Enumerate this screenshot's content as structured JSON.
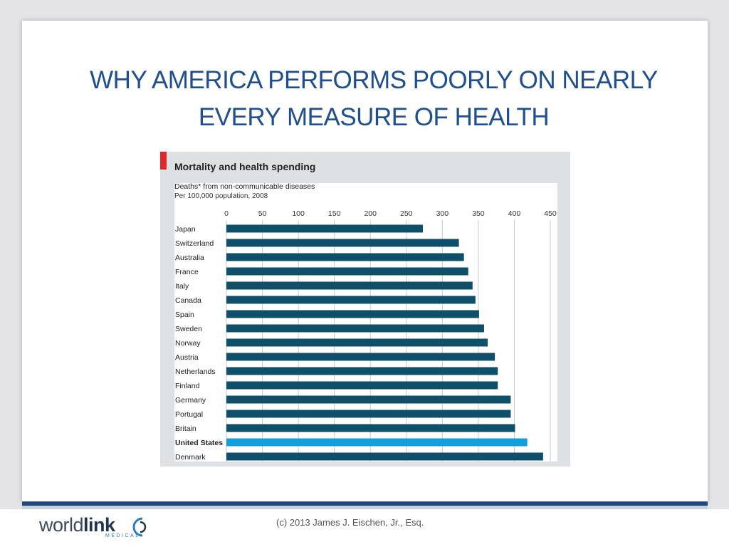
{
  "slide": {
    "title": "WHY AMERICA PERFORMS POORLY ON NEARLY EVERY MEASURE OF HEALTH",
    "footer_text": "(c) 2013 James J. Eischen, Jr., Esq.",
    "logo": {
      "part1": "world",
      "part2": "link",
      "tagline": "MEDICAL"
    }
  },
  "colors": {
    "title": "#1f4f8f",
    "bar": "#0e4f6a",
    "bar_highlight": "#12a0dc",
    "accent": "#e3262b",
    "gridline": "#c6ccd0"
  },
  "chart_data": {
    "type": "bar",
    "orientation": "horizontal",
    "title": "Mortality and health spending",
    "subtitle": "Deaths* from non-communicable diseases",
    "unit_note": "Per 100,000 population, 2008",
    "xlim": [
      0,
      450
    ],
    "xticks": [
      0,
      50,
      100,
      150,
      200,
      250,
      300,
      350,
      400,
      450
    ],
    "grid": true,
    "axis_position": "top",
    "highlight": "United States",
    "categories": [
      "Japan",
      "Switzerland",
      "Australia",
      "France",
      "Italy",
      "Canada",
      "Spain",
      "Sweden",
      "Norway",
      "Austria",
      "Netherlands",
      "Finland",
      "Germany",
      "Portugal",
      "Britain",
      "United States",
      "Denmark"
    ],
    "values": [
      273,
      323,
      330,
      336,
      342,
      346,
      351,
      358,
      363,
      373,
      377,
      377,
      395,
      395,
      401,
      418,
      440
    ]
  }
}
